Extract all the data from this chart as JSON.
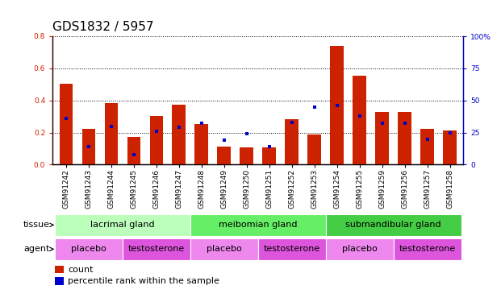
{
  "title": "GDS1832 / 5957",
  "samples": [
    "GSM91242",
    "GSM91243",
    "GSM91244",
    "GSM91245",
    "GSM91246",
    "GSM91247",
    "GSM91248",
    "GSM91249",
    "GSM91250",
    "GSM91251",
    "GSM91252",
    "GSM91253",
    "GSM91254",
    "GSM91255",
    "GSM91259",
    "GSM91256",
    "GSM91257",
    "GSM91258"
  ],
  "count_values": [
    0.505,
    0.225,
    0.385,
    0.175,
    0.305,
    0.375,
    0.255,
    0.11,
    0.105,
    0.105,
    0.285,
    0.19,
    0.74,
    0.555,
    0.33,
    0.33,
    0.225,
    0.215
  ],
  "percentile_values": [
    36,
    14,
    30,
    8,
    26,
    29,
    32,
    19,
    24,
    14,
    33,
    45,
    46,
    38,
    32,
    32,
    20,
    25
  ],
  "ylim_left": [
    0,
    0.8
  ],
  "ylim_right": [
    0,
    100
  ],
  "yticks_left": [
    0,
    0.2,
    0.4,
    0.6,
    0.8
  ],
  "yticks_right": [
    0,
    25,
    50,
    75,
    100
  ],
  "bar_color": "#cc2200",
  "dot_color": "#0000cc",
  "tissue_groups": [
    {
      "label": "lacrimal gland",
      "start": 0,
      "end": 6,
      "color": "#bbffbb"
    },
    {
      "label": "meibomian gland",
      "start": 6,
      "end": 12,
      "color": "#66ee66"
    },
    {
      "label": "submandibular gland",
      "start": 12,
      "end": 18,
      "color": "#44cc44"
    }
  ],
  "agent_groups": [
    {
      "label": "placebo",
      "start": 0,
      "end": 3,
      "color": "#ee88ee"
    },
    {
      "label": "testosterone",
      "start": 3,
      "end": 6,
      "color": "#dd55dd"
    },
    {
      "label": "placebo",
      "start": 6,
      "end": 9,
      "color": "#ee88ee"
    },
    {
      "label": "testosterone",
      "start": 9,
      "end": 12,
      "color": "#dd55dd"
    },
    {
      "label": "placebo",
      "start": 12,
      "end": 15,
      "color": "#ee88ee"
    },
    {
      "label": "testosterone",
      "start": 15,
      "end": 18,
      "color": "#dd55dd"
    }
  ],
  "legend_count_label": "count",
  "legend_dot_label": "percentile rank within the sample",
  "tissue_row_label": "tissue",
  "agent_row_label": "agent",
  "title_fontsize": 11,
  "tick_fontsize": 6.5,
  "label_fontsize": 8,
  "row_label_fontsize": 8
}
